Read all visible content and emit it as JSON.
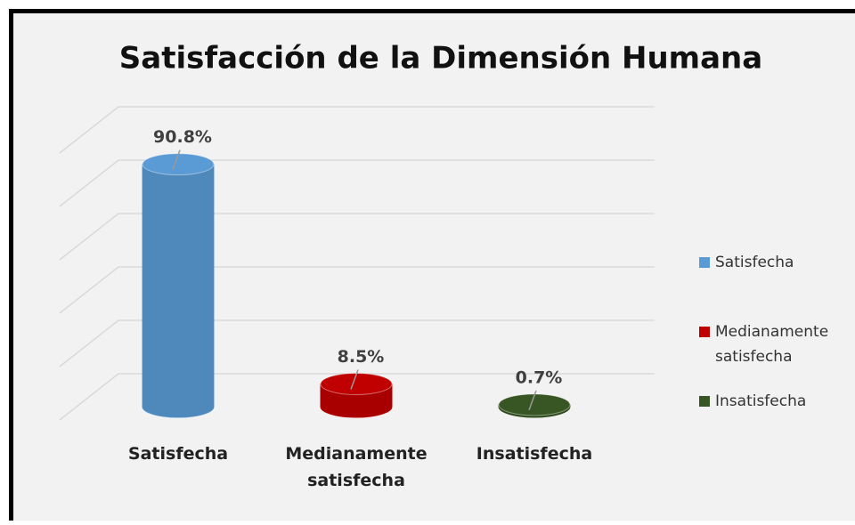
{
  "chart_data": {
    "type": "cylinder-bar",
    "title": "Satisfacción de la Dimensión Humana",
    "categories": [
      "Satisfecha",
      "Medianamente satisfecha",
      "Insatisfecha"
    ],
    "values": [
      90.8,
      8.5,
      0.7
    ],
    "value_labels": [
      "90.8%",
      "8.5%",
      "0.7%"
    ],
    "colors": [
      "#5b9bd5",
      "#c00000",
      "#375623"
    ],
    "ylim": [
      0,
      100
    ],
    "yticks": [
      0,
      20,
      40,
      60,
      80,
      100
    ],
    "grid": true,
    "legend": "right"
  }
}
